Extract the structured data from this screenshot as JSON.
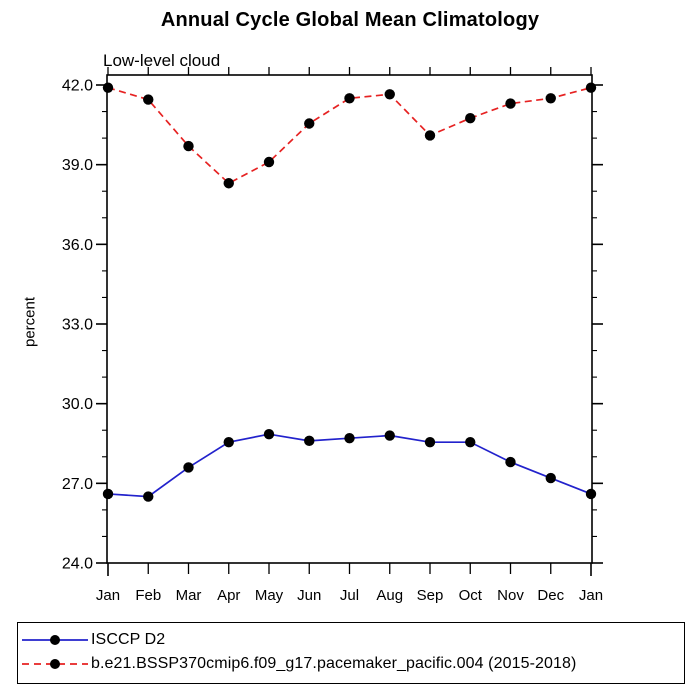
{
  "chart_data": {
    "type": "line",
    "title": "Annual Cycle Global Mean Climatology",
    "subtitle": "Low-level cloud",
    "xlabel": "",
    "ylabel": "percent",
    "categories": [
      "Jan",
      "Feb",
      "Mar",
      "Apr",
      "May",
      "Jun",
      "Jul",
      "Aug",
      "Sep",
      "Oct",
      "Nov",
      "Dec",
      "Jan"
    ],
    "series": [
      {
        "name": "ISCCP D2",
        "color": "#2222cc",
        "line_style": "solid",
        "marker": "filled-circle",
        "marker_color": "#000000",
        "values": [
          26.6,
          26.5,
          27.6,
          28.55,
          28.85,
          28.6,
          28.7,
          28.8,
          28.55,
          28.55,
          27.8,
          27.2,
          26.6
        ]
      },
      {
        "name": "b.e21.BSSP370cmip6.f09_g17.pacemaker_pacific.004 (2015-2018)",
        "color": "#e62222",
        "line_style": "dashed",
        "marker": "filled-circle",
        "marker_color": "#000000",
        "values": [
          41.9,
          41.45,
          39.7,
          38.3,
          39.1,
          40.55,
          41.5,
          41.65,
          40.1,
          40.75,
          41.3,
          41.5,
          41.9
        ]
      }
    ],
    "ylim": [
      23.9,
      42.4
    ],
    "yticks_major": [
      24.0,
      27.0,
      30.0,
      33.0,
      36.0,
      39.0,
      42.0
    ],
    "ytick_minor_step": 1.0,
    "ytick_label_format": "one-decimal",
    "grid": false,
    "frame": "boxed-with-outward-ticks",
    "legend_position": "bottom-left-box"
  }
}
